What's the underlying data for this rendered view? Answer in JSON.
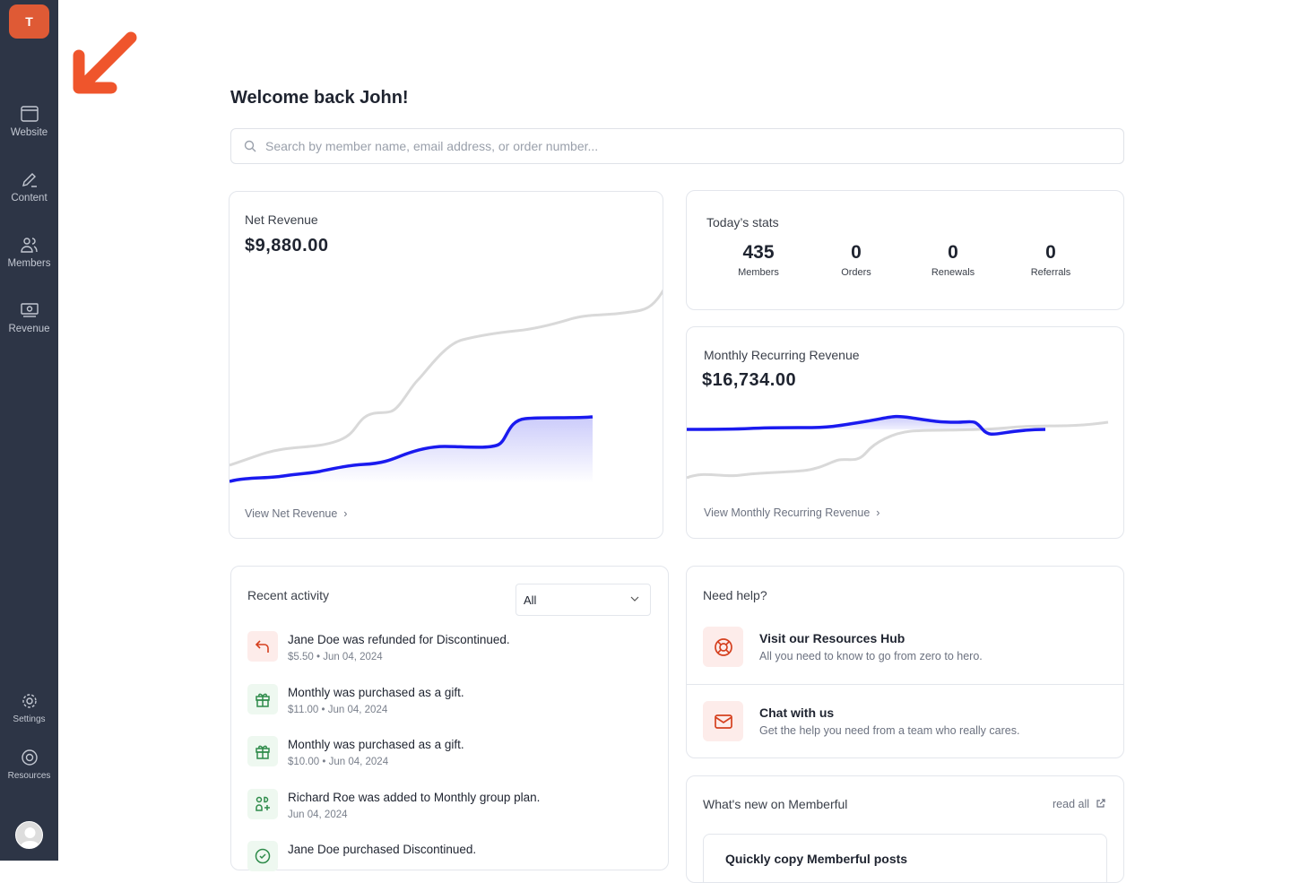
{
  "sidebar": {
    "logo": "T",
    "items": [
      {
        "label": "Website"
      },
      {
        "label": "Content"
      },
      {
        "label": "Members"
      },
      {
        "label": "Revenue"
      },
      {
        "label": "Settings"
      },
      {
        "label": "Resources"
      }
    ]
  },
  "header": {
    "title": "Welcome back John!"
  },
  "search": {
    "placeholder": "Search by member name, email address, or order number..."
  },
  "net_revenue": {
    "label": "Net Revenue",
    "value": "$9,880.00",
    "link": "View Net Revenue"
  },
  "today": {
    "label": "Today’s stats",
    "stats": [
      {
        "value": "435",
        "label": "Members"
      },
      {
        "value": "0",
        "label": "Orders"
      },
      {
        "value": "0",
        "label": "Renewals"
      },
      {
        "value": "0",
        "label": "Referrals"
      }
    ]
  },
  "mrr": {
    "label": "Monthly Recurring Revenue",
    "value": "$16,734.00",
    "link": "View Monthly Recurring Revenue"
  },
  "activity": {
    "title": "Recent activity",
    "filter": "All",
    "items": [
      {
        "text": "Jane Doe was refunded for Discontinued.",
        "meta": "$5.50 • Jun 04, 2024"
      },
      {
        "text": "Monthly was purchased as a gift.",
        "meta": "$11.00 • Jun 04, 2024"
      },
      {
        "text": "Monthly was purchased as a gift.",
        "meta": "$10.00 • Jun 04, 2024"
      },
      {
        "text": "Richard Roe was added to Monthly group plan.",
        "meta": "Jun 04, 2024"
      },
      {
        "text": "Jane Doe purchased Discontinued.",
        "meta": ""
      }
    ]
  },
  "help": {
    "title": "Need help?",
    "items": [
      {
        "title": "Visit our Resources Hub",
        "desc": "All you need to know to go from zero to hero."
      },
      {
        "title": "Chat with us",
        "desc": "Get the help you need from a team who really cares."
      }
    ]
  },
  "news": {
    "title": "What's new on Memberful",
    "read_all": "read all",
    "post_title": "Quickly copy Memberful posts"
  },
  "colors": {
    "accent": "#df5a35",
    "chart_line": "#1a1aef",
    "sidebar": "#2d3546"
  }
}
